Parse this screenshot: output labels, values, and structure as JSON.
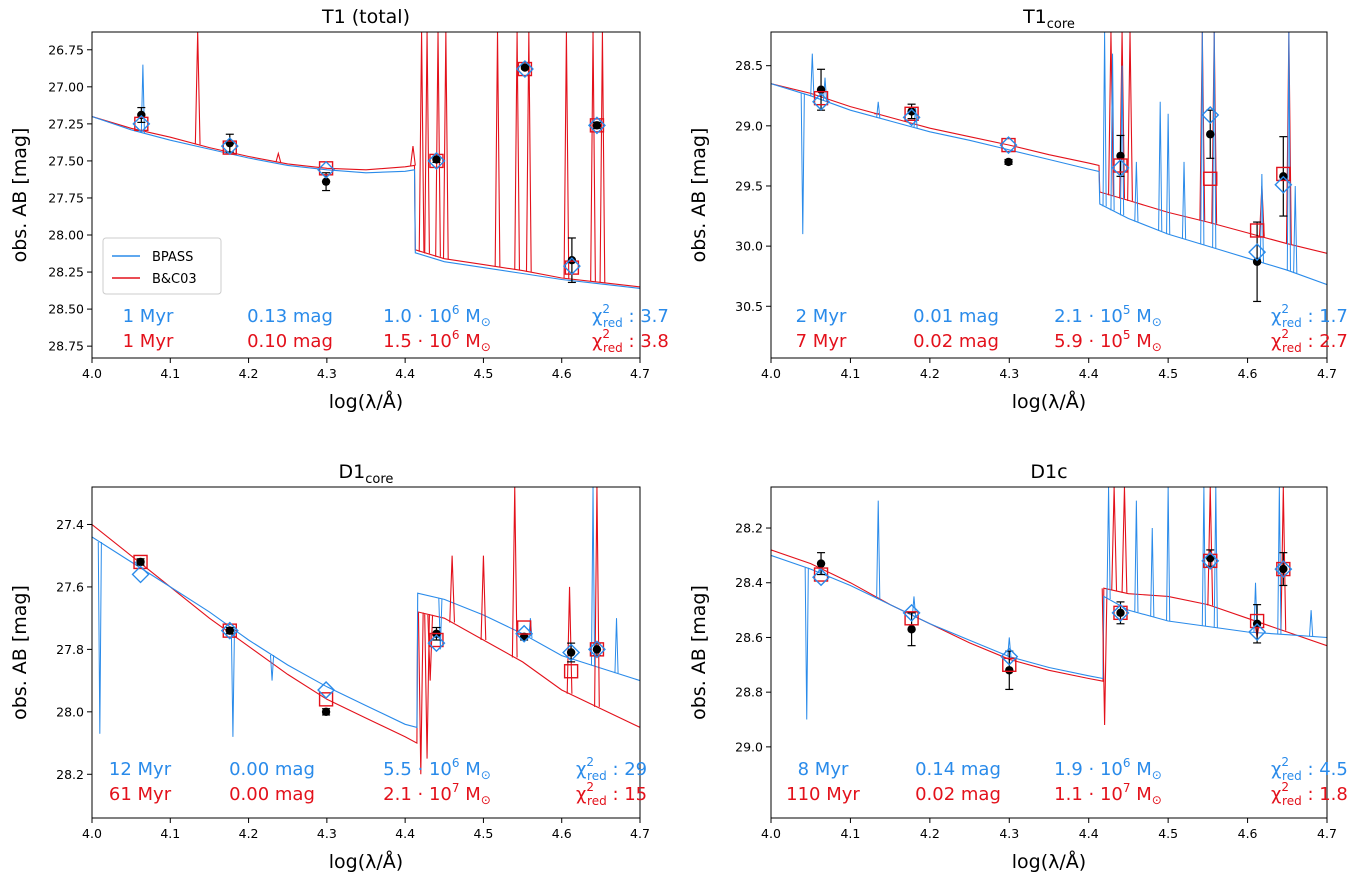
{
  "colors": {
    "bpass": "#2a8bea",
    "bc03": "#e3111b",
    "data": "#000000"
  },
  "chart_data": [
    {
      "type": "line",
      "title": "T1 (total)",
      "title_sub": "",
      "xlabel": "log(λ/Å)",
      "ylabel": "obs. AB [mag]",
      "xlim": [
        4.0,
        4.7
      ],
      "ylim": [
        28.83,
        26.63
      ],
      "y_inverted": true,
      "xticks": [
        "4.0",
        "4.1",
        "4.2",
        "4.3",
        "4.4",
        "4.5",
        "4.6",
        "4.7"
      ],
      "yticks": [
        "26.75",
        "27.00",
        "27.25",
        "27.50",
        "27.75",
        "28.00",
        "28.25",
        "28.50",
        "28.75"
      ],
      "legend": {
        "position": "lower-left",
        "entries": [
          "BPASS",
          "B&C03"
        ]
      },
      "observed": [
        {
          "x": 4.063,
          "y": 27.19,
          "err": 0.05
        },
        {
          "x": 4.176,
          "y": 27.38,
          "err": 0.06
        },
        {
          "x": 4.299,
          "y": 27.64,
          "err": 0.06
        },
        {
          "x": 4.44,
          "y": 27.49,
          "err": 0.02
        },
        {
          "x": 4.553,
          "y": 26.87,
          "err": 0.01
        },
        {
          "x": 4.613,
          "y": 28.17,
          "err": 0.15
        },
        {
          "x": 4.645,
          "y": 27.26,
          "err": 0.02
        }
      ],
      "bpass_photometry": [
        {
          "x": 4.063,
          "y": 27.25
        },
        {
          "x": 4.176,
          "y": 27.4
        },
        {
          "x": 4.299,
          "y": 27.56
        },
        {
          "x": 4.44,
          "y": 27.5
        },
        {
          "x": 4.553,
          "y": 26.88
        },
        {
          "x": 4.613,
          "y": 28.21
        },
        {
          "x": 4.645,
          "y": 27.26
        }
      ],
      "bc03_photometry": [
        {
          "x": 4.063,
          "y": 27.25
        },
        {
          "x": 4.176,
          "y": 27.41
        },
        {
          "x": 4.299,
          "y": 27.55
        },
        {
          "x": 4.44,
          "y": 27.5
        },
        {
          "x": 4.553,
          "y": 26.88
        },
        {
          "x": 4.613,
          "y": 28.22
        },
        {
          "x": 4.645,
          "y": 27.26
        }
      ],
      "spectrum": {
        "xs": [
          4.0,
          4.05,
          4.1,
          4.15,
          4.2,
          4.25,
          4.3,
          4.35,
          4.4,
          4.412,
          4.413,
          4.45,
          4.5,
          4.55,
          4.6,
          4.65,
          4.7
        ],
        "bpass": [
          27.2,
          27.29,
          27.36,
          27.42,
          27.48,
          27.53,
          27.56,
          27.58,
          27.57,
          27.56,
          28.12,
          28.18,
          28.22,
          28.26,
          28.3,
          28.33,
          28.36
        ],
        "bc03": [
          27.2,
          27.28,
          27.34,
          27.41,
          27.47,
          27.52,
          27.55,
          27.56,
          27.54,
          27.53,
          28.1,
          28.16,
          28.2,
          28.24,
          28.29,
          28.32,
          28.35
        ],
        "bc03_lines": [
          {
            "x": 4.135,
            "y": 26.63
          },
          {
            "x": 4.238,
            "y": 27.45
          },
          {
            "x": 4.41,
            "y": 27.4
          },
          {
            "x": 4.421,
            "y": 26.63
          },
          {
            "x": 4.428,
            "y": 26.63
          },
          {
            "x": 4.442,
            "y": 26.63
          },
          {
            "x": 4.452,
            "y": 26.63
          },
          {
            "x": 4.518,
            "y": 26.63
          },
          {
            "x": 4.543,
            "y": 26.63
          },
          {
            "x": 4.558,
            "y": 26.63
          },
          {
            "x": 4.606,
            "y": 26.63
          },
          {
            "x": 4.64,
            "y": 26.63
          },
          {
            "x": 4.652,
            "y": 26.63
          }
        ],
        "bpass_lines": [
          {
            "x": 4.065,
            "y": 26.85
          }
        ]
      },
      "fits": [
        {
          "model": "BPASS",
          "age": "1 Myr",
          "ext": "0.13 mag",
          "mass_coef": "1.0",
          "mass_exp": "6",
          "chi2": "3.7"
        },
        {
          "model": "B&C03",
          "age": "1 Myr",
          "ext": "0.10 mag",
          "mass_coef": "1.5",
          "mass_exp": "6",
          "chi2": "3.8"
        }
      ]
    },
    {
      "type": "line",
      "title": "T1",
      "title_sub": "core",
      "xlabel": "log(λ/Å)",
      "ylabel": "obs. AB [mag]",
      "xlim": [
        4.0,
        4.7
      ],
      "ylim": [
        30.93,
        28.22
      ],
      "y_inverted": true,
      "xticks": [
        "4.0",
        "4.1",
        "4.2",
        "4.3",
        "4.4",
        "4.5",
        "4.6",
        "4.7"
      ],
      "yticks": [
        "28.5",
        "29.0",
        "29.5",
        "30.0",
        "30.5"
      ],
      "observed": [
        {
          "x": 4.063,
          "y": 28.7,
          "err": 0.17
        },
        {
          "x": 4.177,
          "y": 28.88,
          "err": 0.06
        },
        {
          "x": 4.299,
          "y": 29.3,
          "err": 0.02
        },
        {
          "x": 4.44,
          "y": 29.25,
          "err": 0.17
        },
        {
          "x": 4.553,
          "y": 29.07,
          "err": 0.2
        },
        {
          "x": 4.612,
          "y": 30.13,
          "err": 0.33
        },
        {
          "x": 4.645,
          "y": 29.42,
          "err": 0.33
        }
      ],
      "bpass_photometry": [
        {
          "x": 4.063,
          "y": 28.8
        },
        {
          "x": 4.177,
          "y": 28.93
        },
        {
          "x": 4.299,
          "y": 29.16
        },
        {
          "x": 4.44,
          "y": 29.35
        },
        {
          "x": 4.553,
          "y": 28.91
        },
        {
          "x": 4.612,
          "y": 30.05
        },
        {
          "x": 4.645,
          "y": 29.49
        }
      ],
      "bc03_photometry": [
        {
          "x": 4.063,
          "y": 28.77
        },
        {
          "x": 4.177,
          "y": 28.9
        },
        {
          "x": 4.299,
          "y": 29.16
        },
        {
          "x": 4.44,
          "y": 29.33
        },
        {
          "x": 4.553,
          "y": 29.44
        },
        {
          "x": 4.612,
          "y": 29.87
        },
        {
          "x": 4.645,
          "y": 29.4
        }
      ],
      "spectrum": {
        "xs": [
          4.0,
          4.05,
          4.1,
          4.15,
          4.2,
          4.25,
          4.3,
          4.35,
          4.4,
          4.413,
          4.414,
          4.45,
          4.5,
          4.55,
          4.6,
          4.65,
          4.7
        ],
        "bpass": [
          28.65,
          28.75,
          28.87,
          28.96,
          29.05,
          29.12,
          29.2,
          29.28,
          29.36,
          29.38,
          29.65,
          29.77,
          29.9,
          30.0,
          30.1,
          30.2,
          30.32
        ],
        "bc03": [
          28.65,
          28.73,
          28.84,
          28.93,
          29.02,
          29.09,
          29.16,
          29.24,
          29.31,
          29.33,
          29.55,
          29.62,
          29.72,
          29.8,
          29.89,
          29.98,
          30.06
        ],
        "bc03_lines": [
          {
            "x": 4.133,
            "y": 28.9
          },
          {
            "x": 4.428,
            "y": 28.22
          },
          {
            "x": 4.442,
            "y": 28.22
          },
          {
            "x": 4.452,
            "y": 28.22
          },
          {
            "x": 4.543,
            "y": 28.22
          },
          {
            "x": 4.558,
            "y": 28.22
          },
          {
            "x": 4.618,
            "y": 29.5
          },
          {
            "x": 4.652,
            "y": 28.22
          }
        ],
        "bpass_lines": [
          {
            "x": 4.04,
            "y": 29.9
          },
          {
            "x": 4.052,
            "y": 28.4
          },
          {
            "x": 4.068,
            "y": 28.6
          },
          {
            "x": 4.135,
            "y": 28.8
          },
          {
            "x": 4.182,
            "y": 28.85
          },
          {
            "x": 4.42,
            "y": 28.22
          },
          {
            "x": 4.43,
            "y": 28.4
          },
          {
            "x": 4.442,
            "y": 28.5
          },
          {
            "x": 4.46,
            "y": 29.3
          },
          {
            "x": 4.49,
            "y": 28.8
          },
          {
            "x": 4.5,
            "y": 28.9
          },
          {
            "x": 4.52,
            "y": 29.3
          },
          {
            "x": 4.543,
            "y": 28.22
          },
          {
            "x": 4.558,
            "y": 28.22
          },
          {
            "x": 4.618,
            "y": 29.4
          },
          {
            "x": 4.652,
            "y": 28.22
          },
          {
            "x": 4.66,
            "y": 29.5
          }
        ]
      },
      "fits": [
        {
          "model": "BPASS",
          "age": "2 Myr",
          "ext": "0.01 mag",
          "mass_coef": "2.1",
          "mass_exp": "5",
          "chi2": "1.7"
        },
        {
          "model": "B&C03",
          "age": "7 Myr",
          "ext": "0.02 mag",
          "mass_coef": "5.9",
          "mass_exp": "5",
          "chi2": "2.7"
        }
      ]
    },
    {
      "type": "line",
      "title": "D1",
      "title_sub": "core",
      "xlabel": "log(λ/Å)",
      "ylabel": "obs. AB [mag]",
      "xlim": [
        4.0,
        4.7
      ],
      "ylim": [
        28.34,
        27.28
      ],
      "y_inverted": true,
      "xticks": [
        "4.0",
        "4.1",
        "4.2",
        "4.3",
        "4.4",
        "4.5",
        "4.6",
        "4.7"
      ],
      "yticks": [
        "27.4",
        "27.6",
        "27.8",
        "28.0",
        "28.2"
      ],
      "observed": [
        {
          "x": 4.062,
          "y": 27.52,
          "err": 0.01
        },
        {
          "x": 4.176,
          "y": 27.74,
          "err": 0.01
        },
        {
          "x": 4.299,
          "y": 28.0,
          "err": 0.01
        },
        {
          "x": 4.44,
          "y": 27.75,
          "err": 0.02
        },
        {
          "x": 4.552,
          "y": 27.76,
          "err": 0.01
        },
        {
          "x": 4.612,
          "y": 27.81,
          "err": 0.03
        },
        {
          "x": 4.645,
          "y": 27.8,
          "err": 0.02
        }
      ],
      "bpass_photometry": [
        {
          "x": 4.062,
          "y": 27.56
        },
        {
          "x": 4.176,
          "y": 27.74
        },
        {
          "x": 4.299,
          "y": 27.93
        },
        {
          "x": 4.44,
          "y": 27.78
        },
        {
          "x": 4.552,
          "y": 27.75
        },
        {
          "x": 4.612,
          "y": 27.81
        },
        {
          "x": 4.645,
          "y": 27.8
        }
      ],
      "bc03_photometry": [
        {
          "x": 4.062,
          "y": 27.52
        },
        {
          "x": 4.176,
          "y": 27.74
        },
        {
          "x": 4.299,
          "y": 27.96
        },
        {
          "x": 4.44,
          "y": 27.77
        },
        {
          "x": 4.552,
          "y": 27.73
        },
        {
          "x": 4.612,
          "y": 27.87
        },
        {
          "x": 4.645,
          "y": 27.8
        }
      ],
      "spectrum": {
        "xs": [
          4.0,
          4.05,
          4.1,
          4.15,
          4.2,
          4.25,
          4.3,
          4.35,
          4.4,
          4.415,
          4.416,
          4.45,
          4.5,
          4.55,
          4.6,
          4.65,
          4.7
        ],
        "bpass": [
          27.44,
          27.52,
          27.6,
          27.68,
          27.77,
          27.85,
          27.92,
          27.98,
          28.04,
          28.05,
          27.62,
          27.64,
          27.69,
          27.75,
          27.82,
          27.86,
          27.9
        ],
        "bc03": [
          27.4,
          27.5,
          27.6,
          27.7,
          27.79,
          27.88,
          27.96,
          28.02,
          28.08,
          28.1,
          27.68,
          27.7,
          27.77,
          27.84,
          27.93,
          27.99,
          28.05
        ],
        "bc03_lines": [
          {
            "x": 4.42,
            "y": 28.2
          },
          {
            "x": 4.428,
            "y": 28.15
          },
          {
            "x": 4.432,
            "y": 27.9
          },
          {
            "x": 4.46,
            "y": 27.5
          },
          {
            "x": 4.5,
            "y": 27.5
          },
          {
            "x": 4.54,
            "y": 27.28
          },
          {
            "x": 4.61,
            "y": 27.6
          },
          {
            "x": 4.645,
            "y": 27.28
          }
        ],
        "bpass_lines": [
          {
            "x": 4.01,
            "y": 28.07
          },
          {
            "x": 4.055,
            "y": 27.52
          },
          {
            "x": 4.18,
            "y": 28.08
          },
          {
            "x": 4.23,
            "y": 27.9
          },
          {
            "x": 4.445,
            "y": 27.8
          },
          {
            "x": 4.56,
            "y": 27.7
          },
          {
            "x": 4.64,
            "y": 27.28
          },
          {
            "x": 4.67,
            "y": 27.7
          }
        ]
      },
      "fits": [
        {
          "model": "BPASS",
          "age": "12 Myr",
          "ext": "0.00 mag",
          "mass_coef": "5.5",
          "mass_exp": "6",
          "chi2": "29"
        },
        {
          "model": "B&C03",
          "age": "61 Myr",
          "ext": "0.00 mag",
          "mass_coef": "2.1",
          "mass_exp": "7",
          "chi2": "15"
        }
      ]
    },
    {
      "type": "line",
      "title": "D1c",
      "title_sub": "",
      "xlabel": "log(λ/Å)",
      "ylabel": "obs. AB [mag]",
      "xlim": [
        4.0,
        4.7
      ],
      "ylim": [
        29.26,
        28.05
      ],
      "y_inverted": true,
      "xticks": [
        "4.0",
        "4.1",
        "4.2",
        "4.3",
        "4.4",
        "4.5",
        "4.6",
        "4.7"
      ],
      "yticks": [
        "28.2",
        "28.4",
        "28.6",
        "28.8",
        "29.0"
      ],
      "observed": [
        {
          "x": 4.063,
          "y": 28.33,
          "err": 0.04
        },
        {
          "x": 4.177,
          "y": 28.57,
          "err": 0.06
        },
        {
          "x": 4.3,
          "y": 28.72,
          "err": 0.07
        },
        {
          "x": 4.44,
          "y": 28.51,
          "err": 0.04
        },
        {
          "x": 4.553,
          "y": 28.31,
          "err": 0.03
        },
        {
          "x": 4.612,
          "y": 28.55,
          "err": 0.07
        },
        {
          "x": 4.645,
          "y": 28.35,
          "err": 0.06
        }
      ],
      "bpass_photometry": [
        {
          "x": 4.063,
          "y": 28.38
        },
        {
          "x": 4.177,
          "y": 28.51
        },
        {
          "x": 4.3,
          "y": 28.67
        },
        {
          "x": 4.44,
          "y": 28.51
        },
        {
          "x": 4.553,
          "y": 28.32
        },
        {
          "x": 4.612,
          "y": 28.58
        },
        {
          "x": 4.645,
          "y": 28.35
        }
      ],
      "bc03_photometry": [
        {
          "x": 4.063,
          "y": 28.37
        },
        {
          "x": 4.177,
          "y": 28.53
        },
        {
          "x": 4.3,
          "y": 28.7
        },
        {
          "x": 4.44,
          "y": 28.51
        },
        {
          "x": 4.553,
          "y": 28.32
        },
        {
          "x": 4.612,
          "y": 28.54
        },
        {
          "x": 4.645,
          "y": 28.35
        }
      ],
      "spectrum": {
        "xs": [
          4.0,
          4.05,
          4.1,
          4.15,
          4.2,
          4.25,
          4.3,
          4.35,
          4.4,
          4.418,
          4.419,
          4.45,
          4.5,
          4.55,
          4.6,
          4.65,
          4.7
        ],
        "bpass": [
          28.3,
          28.35,
          28.41,
          28.48,
          28.55,
          28.61,
          28.67,
          28.71,
          28.74,
          28.75,
          28.45,
          28.5,
          28.54,
          28.56,
          28.58,
          28.59,
          28.6
        ],
        "bc03": [
          28.28,
          28.33,
          28.4,
          28.48,
          28.55,
          28.62,
          28.68,
          28.72,
          28.75,
          28.76,
          28.42,
          28.44,
          28.45,
          28.48,
          28.53,
          28.58,
          28.63
        ],
        "bc03_lines": [
          {
            "x": 4.42,
            "y": 28.92
          },
          {
            "x": 4.432,
            "y": 28.05
          },
          {
            "x": 4.445,
            "y": 28.05
          },
          {
            "x": 4.553,
            "y": 28.05
          },
          {
            "x": 4.612,
            "y": 28.6
          },
          {
            "x": 4.645,
            "y": 28.05
          }
        ],
        "bpass_lines": [
          {
            "x": 4.045,
            "y": 28.9
          },
          {
            "x": 4.062,
            "y": 28.32
          },
          {
            "x": 4.135,
            "y": 28.1
          },
          {
            "x": 4.18,
            "y": 28.45
          },
          {
            "x": 4.3,
            "y": 28.6
          },
          {
            "x": 4.425,
            "y": 28.05
          },
          {
            "x": 4.46,
            "y": 28.1
          },
          {
            "x": 4.48,
            "y": 28.2
          },
          {
            "x": 4.5,
            "y": 28.05
          },
          {
            "x": 4.545,
            "y": 28.05
          },
          {
            "x": 4.56,
            "y": 28.05
          },
          {
            "x": 4.61,
            "y": 28.4
          },
          {
            "x": 4.64,
            "y": 28.05
          },
          {
            "x": 4.68,
            "y": 28.5
          }
        ]
      },
      "fits": [
        {
          "model": "BPASS",
          "age": "8 Myr",
          "ext": "0.14 mag",
          "mass_coef": "1.9",
          "mass_exp": "6",
          "chi2": "4.5"
        },
        {
          "model": "B&C03",
          "age": "110 Myr",
          "ext": "0.02 mag",
          "mass_coef": "1.1",
          "mass_exp": "7",
          "chi2": "1.8"
        }
      ]
    }
  ]
}
